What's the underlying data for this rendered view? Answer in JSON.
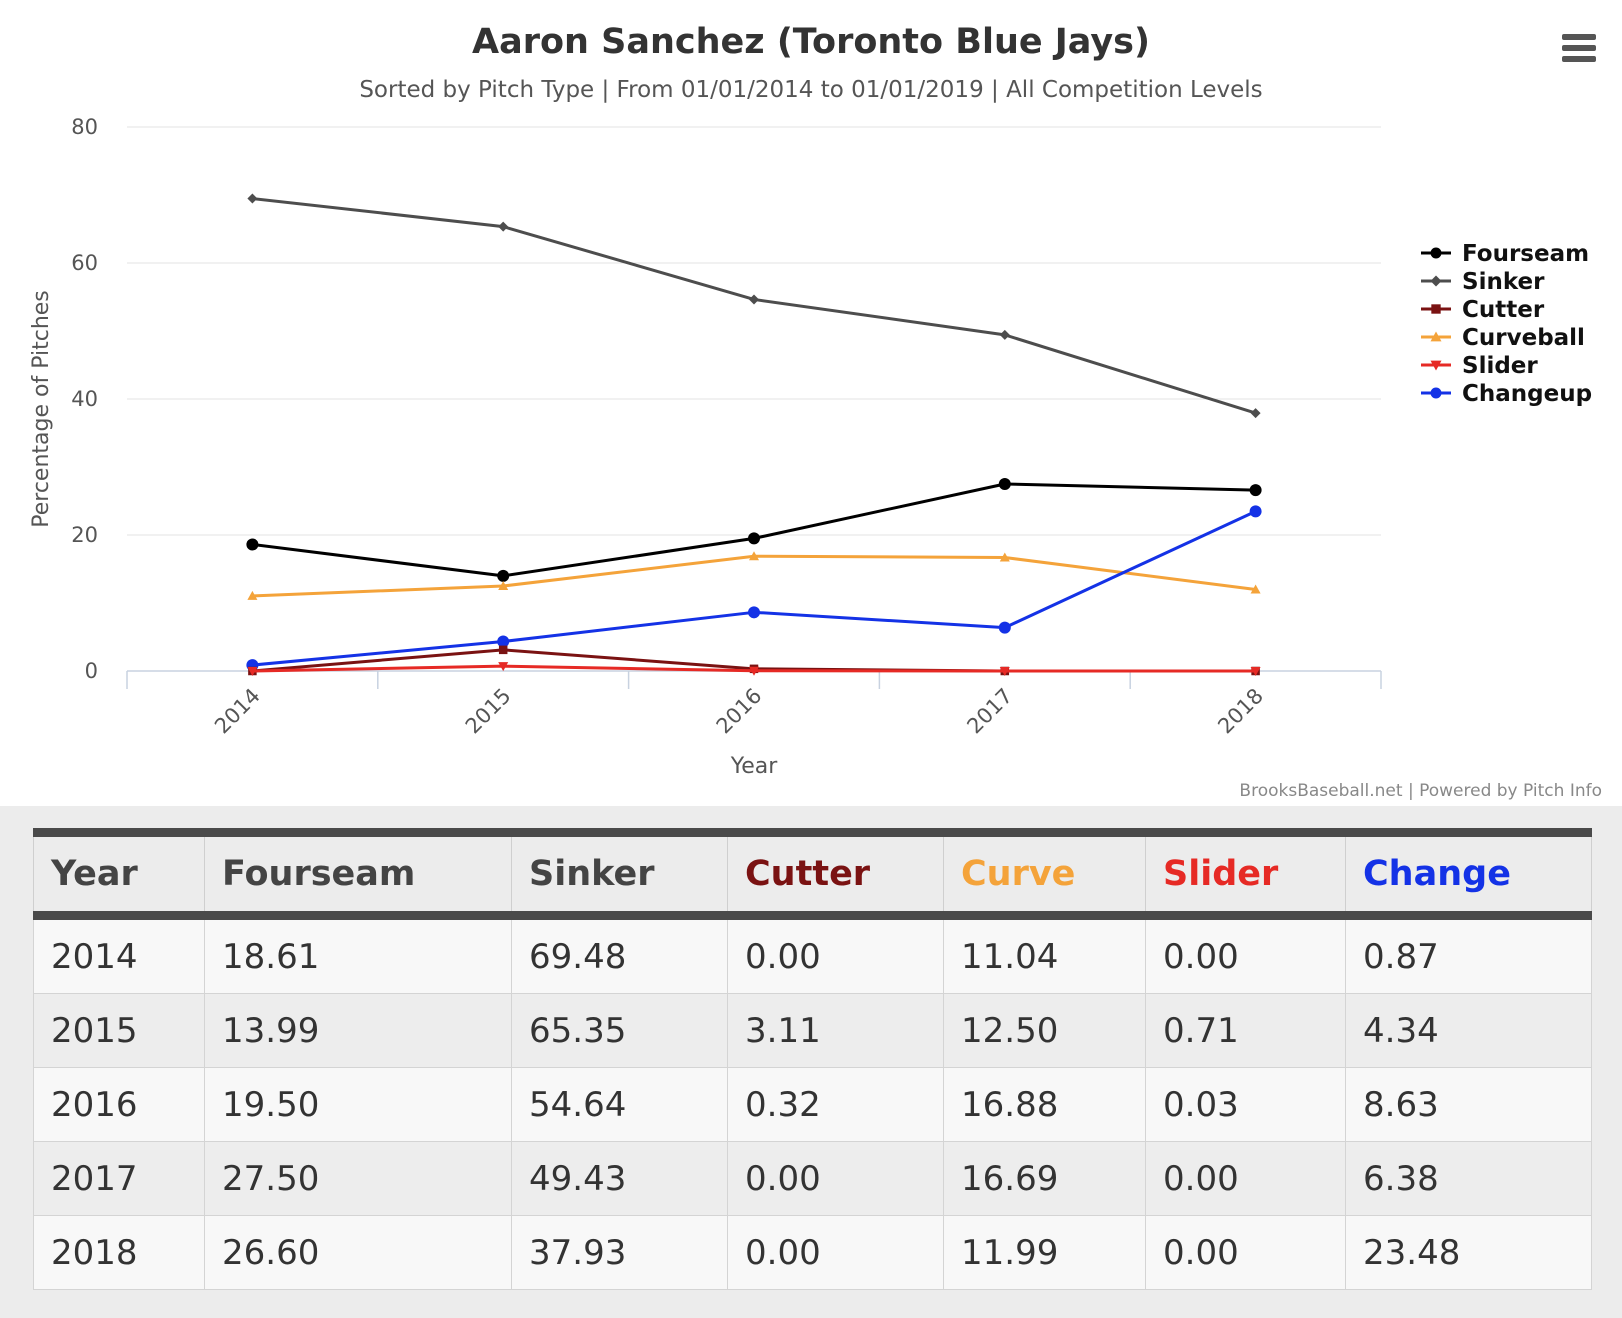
{
  "chart_data": {
    "type": "line",
    "title": "Aaron Sanchez (Toronto Blue Jays)",
    "subtitle": "Sorted by Pitch Type | From 01/01/2014 to 01/01/2019 | All Competition Levels",
    "xlabel": "Year",
    "ylabel": "Percentage of Pitches",
    "categories": [
      "2014",
      "2015",
      "2016",
      "2017",
      "2018"
    ],
    "ylim": [
      0,
      80
    ],
    "yticks": [
      0,
      20,
      40,
      60,
      80
    ],
    "grid": true,
    "legend_position": "right",
    "credits": "BrooksBaseball.net | Powered by Pitch Info",
    "series": [
      {
        "name": "Fourseam",
        "color": "#000000",
        "marker": "circle",
        "values": [
          18.61,
          13.99,
          19.5,
          27.5,
          26.6
        ]
      },
      {
        "name": "Sinker",
        "color": "#4d4d4d",
        "marker": "diamond",
        "values": [
          69.48,
          65.35,
          54.64,
          49.43,
          37.93
        ]
      },
      {
        "name": "Cutter",
        "color": "#7a1212",
        "marker": "square",
        "values": [
          0.0,
          3.11,
          0.32,
          0.0,
          0.0
        ]
      },
      {
        "name": "Curveball",
        "color": "#f4a33a",
        "marker": "triangle",
        "values": [
          11.04,
          12.5,
          16.88,
          16.69,
          11.99
        ]
      },
      {
        "name": "Slider",
        "color": "#e62a25",
        "marker": "triangle-down",
        "values": [
          0.0,
          0.71,
          0.03,
          0.0,
          0.0
        ]
      },
      {
        "name": "Changeup",
        "color": "#1432e6",
        "marker": "circle",
        "values": [
          0.87,
          4.34,
          8.63,
          6.38,
          23.48
        ]
      }
    ]
  },
  "table": {
    "headers": [
      {
        "label": "Year",
        "color": "#444444"
      },
      {
        "label": "Fourseam",
        "color": "#444444"
      },
      {
        "label": "Sinker",
        "color": "#444444"
      },
      {
        "label": "Cutter",
        "color": "#7a1212"
      },
      {
        "label": "Curve",
        "color": "#f4a33a"
      },
      {
        "label": "Slider",
        "color": "#e62a25"
      },
      {
        "label": "Change",
        "color": "#1432e6"
      }
    ],
    "rows": [
      [
        "2014",
        "18.61",
        "69.48",
        "0.00",
        "11.04",
        "0.00",
        "0.87"
      ],
      [
        "2015",
        "13.99",
        "65.35",
        "3.11",
        "12.50",
        "0.71",
        "4.34"
      ],
      [
        "2016",
        "19.50",
        "54.64",
        "0.32",
        "16.88",
        "0.03",
        "8.63"
      ],
      [
        "2017",
        "27.50",
        "49.43",
        "0.00",
        "16.69",
        "0.00",
        "6.38"
      ],
      [
        "2018",
        "26.60",
        "37.93",
        "0.00",
        "11.99",
        "0.00",
        "23.48"
      ]
    ]
  },
  "menu": {
    "icon": "hamburger-icon"
  }
}
